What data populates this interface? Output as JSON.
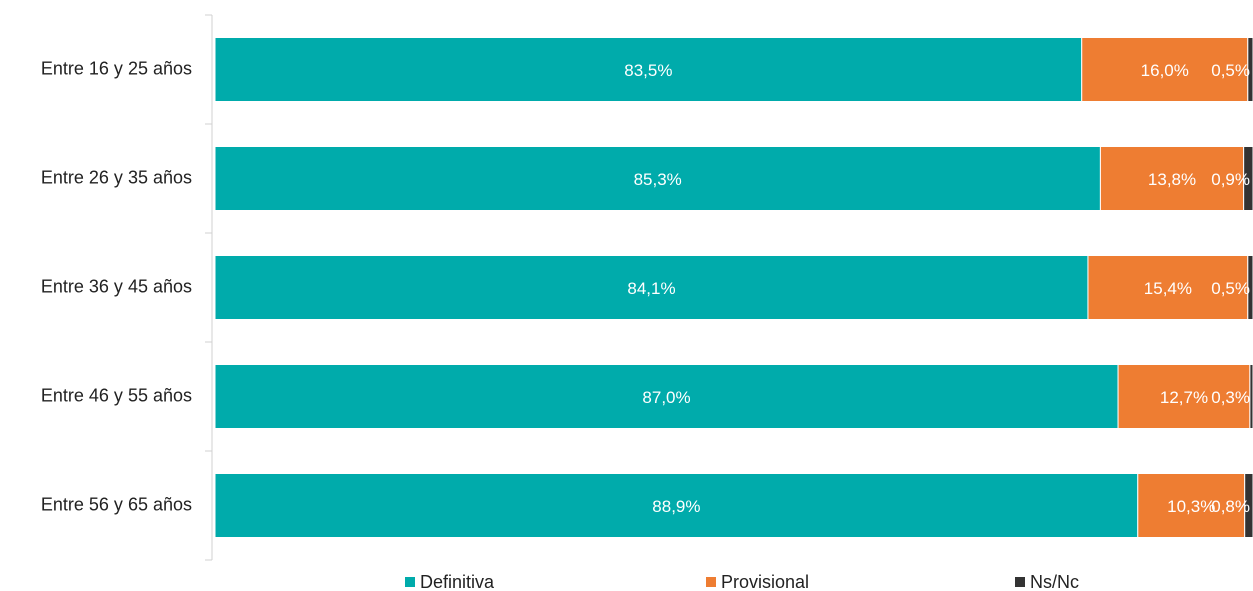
{
  "chart_data": {
    "type": "stacked-bar-horizontal",
    "categories": [
      "Entre 16 y 25 años",
      "Entre 26 y 35 años",
      "Entre 36 y 45 años",
      "Entre 46 y 55 años",
      "Entre 56 y 65 años"
    ],
    "xlim": [
      0,
      100
    ],
    "legend": "bottom",
    "series": [
      {
        "name": "Definitiva",
        "color": "#00abab",
        "values": [
          83.5,
          85.3,
          84.1,
          87.0,
          88.9
        ],
        "value_labels": [
          "83,5%",
          "85,3%",
          "84,1%",
          "87,0%",
          "88,9%"
        ]
      },
      {
        "name": "Provisional",
        "color": "#ee7d32",
        "values": [
          16.0,
          13.8,
          15.4,
          12.7,
          10.3
        ],
        "value_labels": [
          "16,0%",
          "13,8%",
          "15,4%",
          "12,7%",
          "10,3%"
        ]
      },
      {
        "name": "Ns/Nc",
        "color": "#333333",
        "values": [
          0.5,
          0.9,
          0.5,
          0.3,
          0.8
        ],
        "value_labels": [
          "0,5%",
          "0,9%",
          "0,5%",
          "0,3%",
          "0,8%"
        ]
      }
    ]
  }
}
